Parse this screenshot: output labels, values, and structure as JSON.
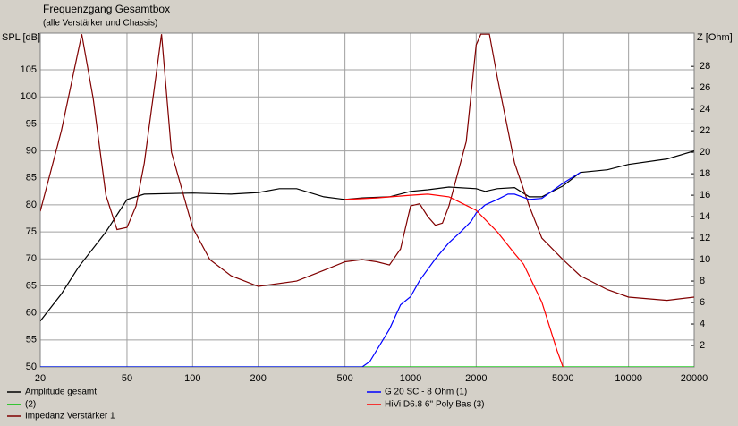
{
  "chart_data": {
    "type": "line",
    "title": "Frequenzgang Gesamtbox",
    "subtitle": "(alle Verstärker und Chassis)",
    "y_label": "SPL [dB]",
    "y2_label": "Z [Ohm]",
    "x_log": true,
    "grid": true,
    "xlim": [
      20,
      20000
    ],
    "xticks": [
      20,
      50,
      100,
      200,
      500,
      1000,
      2000,
      5000,
      10000,
      20000
    ],
    "ylim": [
      50,
      111.8
    ],
    "yticks": [
      50,
      55,
      60,
      65,
      70,
      75,
      80,
      85,
      90,
      95,
      100,
      105
    ],
    "y2lim": [
      0,
      31.1
    ],
    "y2ticks": [
      2,
      4,
      6,
      8,
      10,
      12,
      14,
      16,
      18,
      20,
      22,
      24,
      26,
      28
    ],
    "series": [
      {
        "name": "Amplitude gesamt",
        "color": "#000000",
        "axis": "y",
        "x": [
          20,
          25,
          30,
          40,
          50,
          60,
          100,
          150,
          200,
          250,
          300,
          400,
          500,
          600,
          800,
          1000,
          1200,
          1500,
          2000,
          2200,
          2500,
          3000,
          3500,
          4000,
          5000,
          6000,
          8000,
          10000,
          15000,
          20000
        ],
        "values": [
          58.5,
          63.5,
          68.5,
          75,
          81,
          82,
          82.2,
          82,
          82.3,
          83,
          83,
          81.5,
          81,
          81.3,
          81.5,
          82.5,
          82.8,
          83.3,
          83,
          82.5,
          83,
          83.2,
          81.5,
          81.5,
          83.5,
          86,
          86.5,
          87.5,
          88.5,
          90
        ]
      },
      {
        "name": "(2)",
        "color": "#00c000",
        "axis": "y",
        "x": [
          20,
          20000
        ],
        "values": [
          50,
          50
        ]
      },
      {
        "name": "Impedanz Verstärker 1",
        "color": "#800000",
        "axis": "y2",
        "x": [
          20,
          25,
          31,
          35,
          40,
          45,
          50,
          55,
          60,
          72,
          80,
          100,
          120,
          150,
          200,
          300,
          400,
          500,
          600,
          700,
          800,
          900,
          1000,
          1100,
          1200,
          1300,
          1400,
          1500,
          1800,
          2000,
          2100,
          2300,
          2500,
          3000,
          3500,
          4000,
          5000,
          6000,
          8000,
          10000,
          15000,
          20000
        ],
        "values": [
          14.5,
          22,
          31,
          25,
          16,
          12.8,
          13,
          15,
          19,
          31,
          20,
          13,
          10,
          8.5,
          7.5,
          8,
          9,
          9.8,
          10,
          9.8,
          9.5,
          11,
          15,
          15.2,
          14,
          13.2,
          13.4,
          15,
          21,
          30,
          31,
          31,
          27,
          19,
          15,
          12,
          10,
          8.5,
          7.2,
          6.5,
          6.2,
          6.5
        ]
      },
      {
        "name": "G 20 SC - 8 Ohm (1)",
        "color": "#0000ff",
        "axis": "y",
        "x": [
          20,
          600,
          650,
          800,
          900,
          1000,
          1100,
          1300,
          1500,
          1700,
          1900,
          2000,
          2200,
          2500,
          2800,
          3000,
          3500,
          4000,
          5000,
          6000
        ],
        "values": [
          50,
          50,
          51,
          57,
          61.5,
          63,
          66,
          70,
          73,
          75,
          77,
          78.5,
          80,
          81,
          82,
          82,
          81,
          81.2,
          84,
          86
        ]
      },
      {
        "name": "HiVi D6.8 6'' Poly Bas (3)",
        "color": "#ff0000",
        "axis": "y",
        "x": [
          500,
          700,
          1000,
          1200,
          1500,
          2000,
          2500,
          3000,
          3300,
          4000,
          4700,
          5000
        ],
        "values": [
          81,
          81.3,
          81.8,
          82,
          81.5,
          79,
          75,
          71,
          69,
          62,
          53,
          50
        ]
      }
    ]
  }
}
